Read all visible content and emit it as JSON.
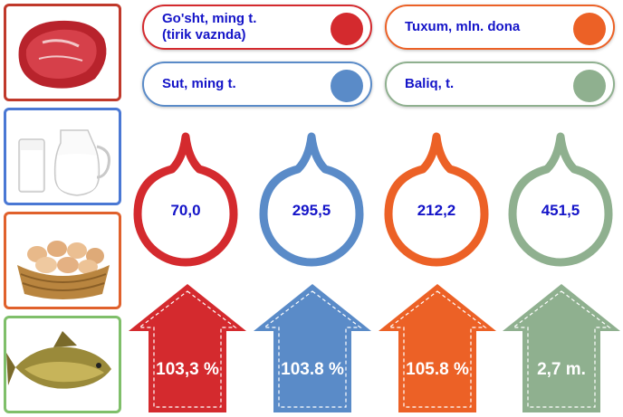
{
  "legend": [
    {
      "label": "Go'sht, ming t.\n(tirik vaznda)",
      "color": "#d42a2e",
      "border": "#d42a2e"
    },
    {
      "label": "Tuxum, mln. dona",
      "color": "#ec6126",
      "border": "#ec6126"
    },
    {
      "label": "Sut, ming t.",
      "color": "#5a8bc8",
      "border": "#5a8bc8"
    },
    {
      "label": "Baliq, t.",
      "color": "#8fb08f",
      "border": "#8fb08f"
    }
  ],
  "photos": [
    {
      "icon": "meat-icon",
      "border": "#c0392b"
    },
    {
      "icon": "milk-icon",
      "border": "#4a78d4"
    },
    {
      "icon": "eggs-basket-icon",
      "border": "#e0612c"
    },
    {
      "icon": "fish-icon",
      "border": "#7fbf6a"
    }
  ],
  "indicators": [
    {
      "value": "70,0",
      "growth": "103,3 %",
      "color": "#d42a2e"
    },
    {
      "value": "295,5",
      "growth": "103.8 %",
      "color": "#5a8bc8"
    },
    {
      "value": "212,2",
      "growth": "105.8 %",
      "color": "#ec6126"
    },
    {
      "value": "451,5",
      "growth": "2,7 m.",
      "color": "#8fb08f"
    }
  ]
}
